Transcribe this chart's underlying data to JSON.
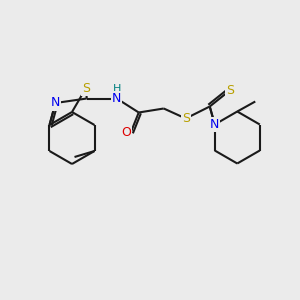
{
  "background_color": "#ebebeb",
  "bond_color": "#1a1a1a",
  "atom_colors": {
    "S": "#b8a000",
    "N": "#0000ee",
    "O": "#dd0000",
    "H": "#008080",
    "C": "#1a1a1a"
  },
  "figsize": [
    3.0,
    3.0
  ],
  "dpi": 100
}
